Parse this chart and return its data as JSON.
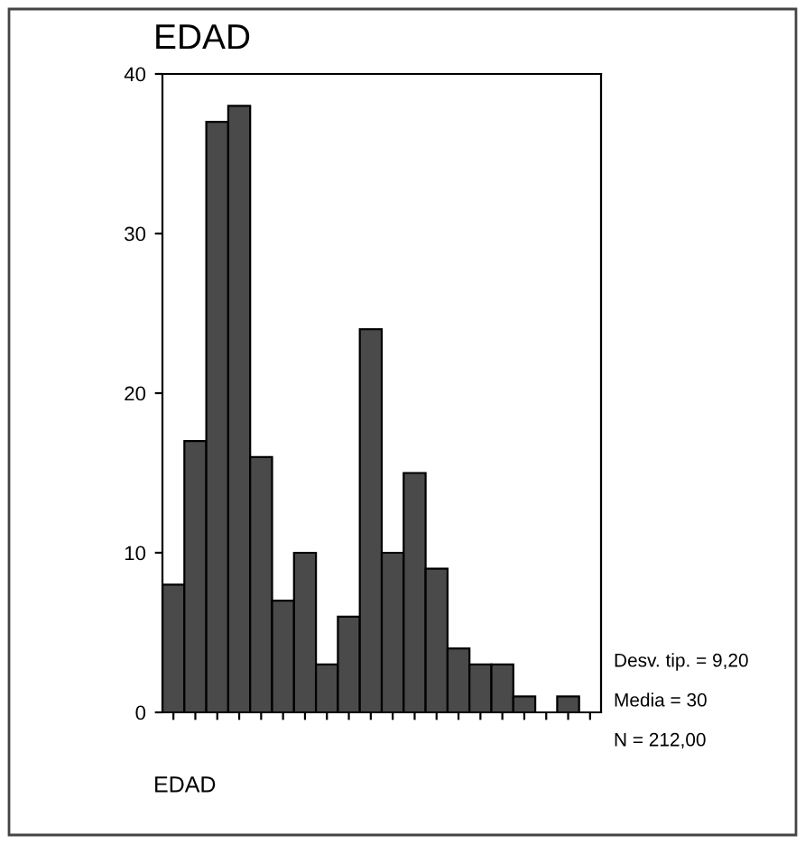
{
  "chart_data": {
    "type": "bar",
    "title": "EDAD",
    "xlabel": "EDAD",
    "categories": [
      null,
      null,
      null,
      null,
      null,
      null,
      null,
      null,
      null,
      null,
      null,
      null,
      null,
      null,
      null,
      null,
      null,
      null,
      null,
      null
    ],
    "values": [
      8,
      17,
      37,
      38,
      16,
      7,
      10,
      3,
      6,
      24,
      10,
      15,
      9,
      4,
      3,
      3,
      1,
      0,
      1,
      0
    ],
    "color": "#4a4a4a",
    "ylim": [
      0,
      40
    ],
    "yticks": [
      0,
      10,
      20,
      30,
      40
    ],
    "grid": false,
    "annotations": [
      "Desv. tip. = 9,20",
      "Media = 30",
      "N = 212,00"
    ]
  }
}
